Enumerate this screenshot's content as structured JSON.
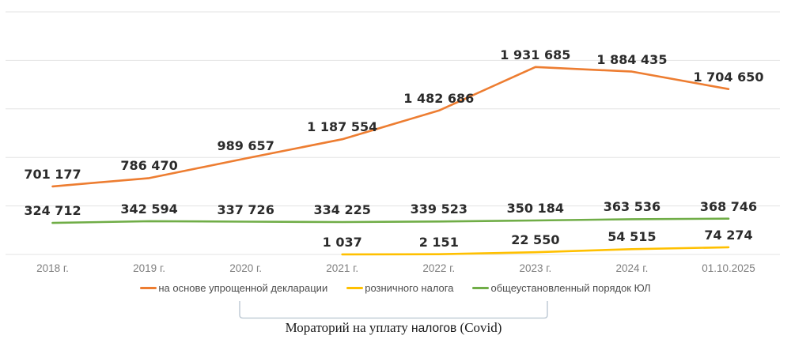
{
  "chart_data": {
    "type": "line",
    "categories": [
      "2018 г.",
      "2019 г.",
      "2020 г.",
      "2021 г.",
      "2022 г.",
      "2023 г.",
      "2024 г.",
      "01.10.2025"
    ],
    "series": [
      {
        "name": "на основе упрощенной декларации",
        "color": "#ED7D31",
        "values": [
          701177,
          786470,
          989657,
          1187554,
          1482686,
          1931685,
          1884435,
          1704650
        ]
      },
      {
        "name": "розничного налога",
        "color": "#FFC000",
        "values": [
          null,
          null,
          null,
          1037,
          2151,
          22550,
          54515,
          74274
        ]
      },
      {
        "name": "общеустановленный порядок ЮЛ",
        "color": "#70AD47",
        "values": [
          324712,
          342594,
          337726,
          334225,
          339523,
          350184,
          363536,
          368746
        ]
      }
    ],
    "ylim": [
      0,
      2500000
    ],
    "grid_step": 500000,
    "grid": true,
    "legend_position": "bottom",
    "data_labels": true,
    "number_format": "space-grouped",
    "title": ""
  },
  "annotation": {
    "part_serif_1": "Мораторий на уплату",
    "part_sans": "налогов",
    "part_serif_2": "(Covid)",
    "bracket_from": "2020 г.",
    "bracket_to": "2023 г."
  },
  "colors": {
    "grid": "#e3e3e3",
    "axis_label": "#7f7f7f",
    "data_label": "#2b2b2b",
    "legend_label": "#4d4d4d",
    "bracket": "#b6c3cf",
    "background": "#ffffff"
  }
}
